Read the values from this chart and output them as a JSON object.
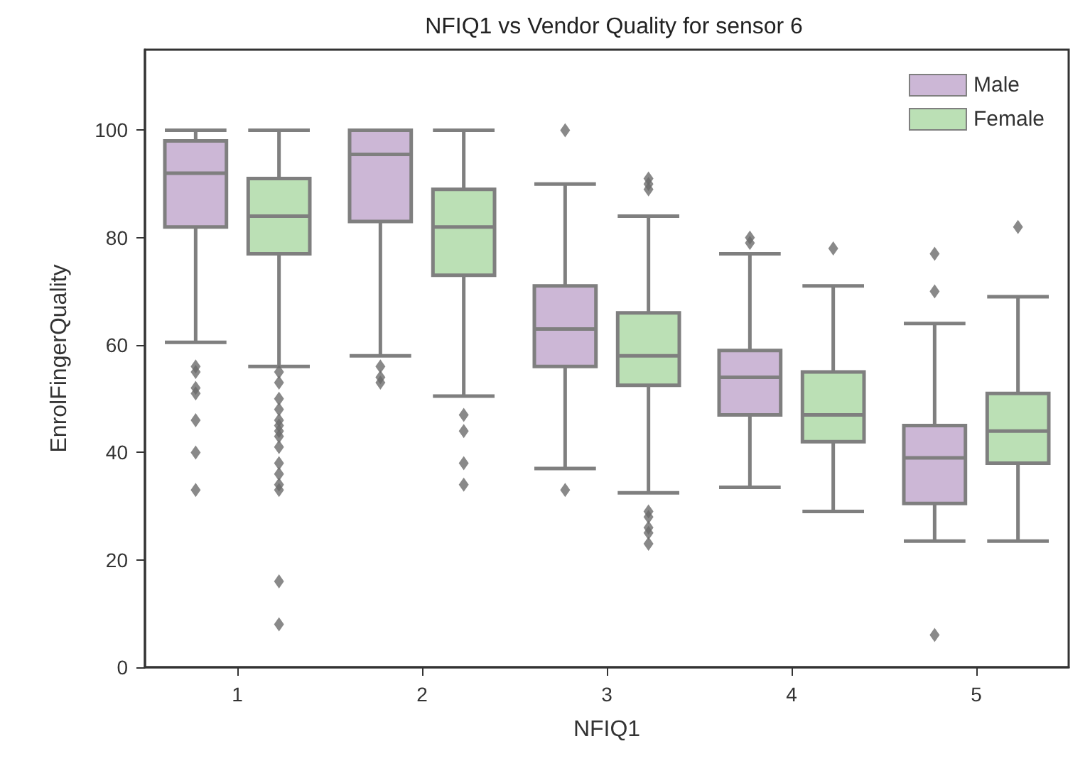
{
  "chart_data": {
    "type": "box",
    "title": "NFIQ1 vs Vendor Quality for sensor 6",
    "xlabel": "NFIQ1",
    "ylabel": "EnrolFingerQuality",
    "categories": [
      "1",
      "2",
      "3",
      "4",
      "5"
    ],
    "ylim": [
      0,
      115
    ],
    "yticks": [
      0,
      20,
      40,
      60,
      80,
      100
    ],
    "grid": false,
    "legend": "top right",
    "marker": "diamond",
    "series": [
      {
        "name": "Male",
        "color": "#ccb7d6",
        "boxes": [
          {
            "low": 60.5,
            "q1": 82,
            "median": 92,
            "q3": 98,
            "high": 100,
            "outliers": [
              56,
              55,
              52,
              51,
              46,
              40,
              33
            ]
          },
          {
            "low": 58,
            "q1": 83,
            "median": 95.5,
            "q3": 100,
            "high": 100,
            "outliers": [
              56,
              54,
              53
            ]
          },
          {
            "low": 37,
            "q1": 56,
            "median": 63,
            "q3": 71,
            "high": 90,
            "outliers": [
              100,
              33
            ]
          },
          {
            "low": 33.5,
            "q1": 47,
            "median": 54,
            "q3": 59,
            "high": 77,
            "outliers": [
              80,
              79
            ]
          },
          {
            "low": 23.5,
            "q1": 30.5,
            "median": 39,
            "q3": 45,
            "high": 64,
            "outliers": [
              77,
              70,
              6
            ]
          }
        ]
      },
      {
        "name": "Female",
        "color": "#bbe0b5",
        "boxes": [
          {
            "low": 56,
            "q1": 77,
            "median": 84,
            "q3": 91,
            "high": 100,
            "outliers": [
              55,
              53,
              50,
              48,
              46,
              45,
              44,
              43,
              41,
              38,
              36,
              34,
              33,
              16,
              8
            ]
          },
          {
            "low": 50.5,
            "q1": 73,
            "median": 82,
            "q3": 89,
            "high": 100,
            "outliers": [
              47,
              44,
              38,
              34
            ]
          },
          {
            "low": 32.5,
            "q1": 52.5,
            "median": 58,
            "q3": 66,
            "high": 84,
            "outliers": [
              91,
              90,
              89,
              29,
              28,
              26,
              25,
              23
            ]
          },
          {
            "low": 29,
            "q1": 42,
            "median": 47,
            "q3": 55,
            "high": 71,
            "outliers": [
              78
            ]
          },
          {
            "low": 23.5,
            "q1": 38,
            "median": 44,
            "q3": 51,
            "high": 69,
            "outliers": [
              82
            ]
          }
        ]
      }
    ]
  }
}
